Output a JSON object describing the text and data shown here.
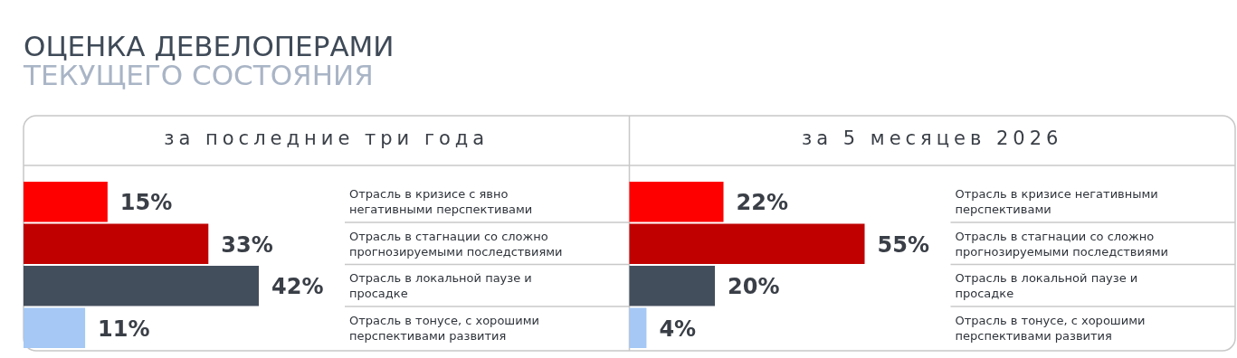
{
  "chart_data": [
    {
      "type": "other",
      "title": "ОЦЕНКА ДЕВЕЛОПЕРАМИ",
      "subtitle": "ТЕКУЩЕГО СОСТОЯНИЯ"
    },
    {
      "type": "bar",
      "orientation": "horizontal",
      "title": "за последние три года",
      "categories": [
        "Отрасль в кризисе с явно негативными перспективами",
        "Отрасль в стагнации со сложно прогнозируемыми последствиями",
        "Отрасль в локальной паузе и просадке",
        "Отрасль в тонусе, с хорошими перспективами развития"
      ],
      "values": [
        15,
        33,
        42,
        11
      ],
      "colors": [
        "#fe0000",
        "#c00000",
        "#434e5c",
        "#a5c8f5"
      ],
      "value_labels": [
        "15%",
        "33%",
        "42%",
        "11%"
      ]
    },
    {
      "type": "bar",
      "orientation": "horizontal",
      "title": "за 5 месяцев 2026",
      "categories": [
        "Отрасль в кризисе негативными перспективами",
        "Отрасль в стагнации со сложно прогнозируемыми последствиями",
        "Отрасль в локальной паузе и просадке",
        "Отрасль в тонусе, с хорошими перспективами развития"
      ],
      "values": [
        22,
        55,
        20,
        4
      ],
      "colors": [
        "#fe0000",
        "#c00000",
        "#434e5c",
        "#a5c8f5"
      ],
      "value_labels": [
        "22%",
        "55%",
        "20%",
        "4%"
      ]
    }
  ]
}
